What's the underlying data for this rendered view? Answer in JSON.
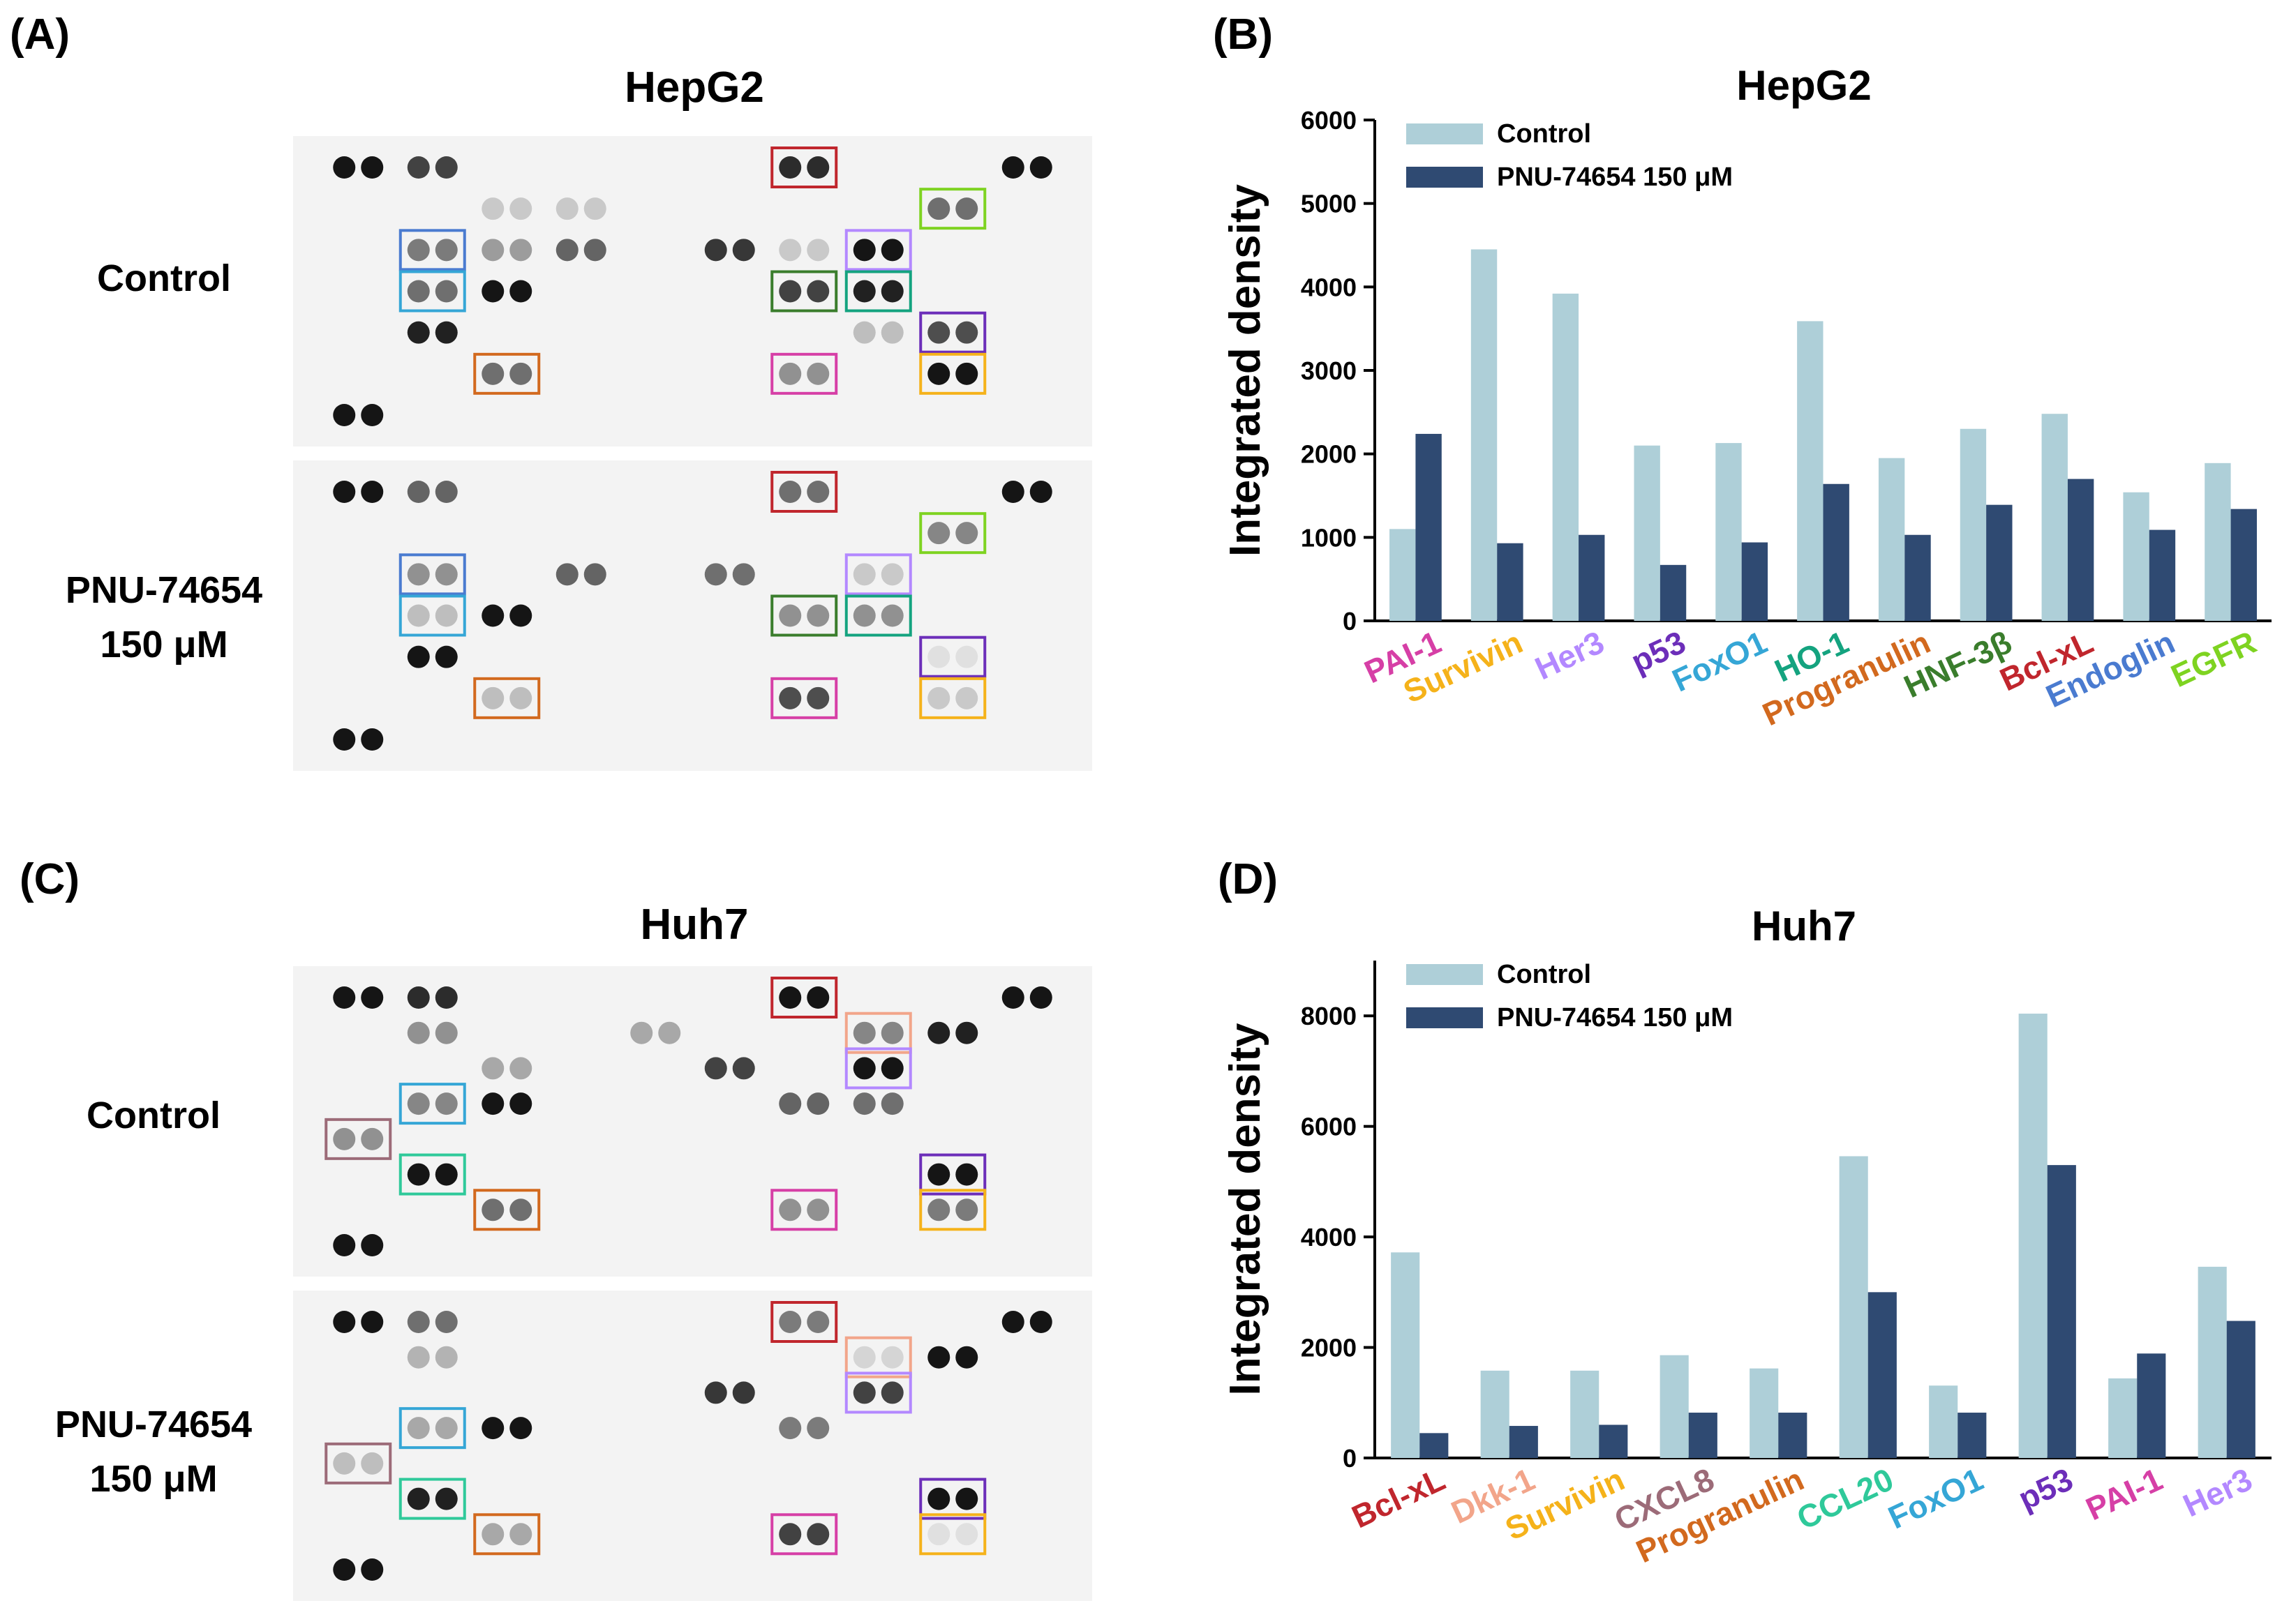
{
  "panels": {
    "a": {
      "letter": "(A)",
      "title": "HepG2",
      "row_labels": [
        "Control",
        "PNU-74654",
        "150 μM"
      ],
      "control_spots": [
        {
          "pair": [
            0,
            0
          ],
          "level": 0.95,
          "frame": null
        },
        {
          "pair": [
            0,
            1
          ],
          "level": 0.75,
          "frame": null
        },
        {
          "pair": [
            0,
            6
          ],
          "level": 0.85,
          "frame": "#c0262d"
        },
        {
          "pair": [
            0,
            9
          ],
          "level": 0.95,
          "frame": null
        },
        {
          "pair": [
            1,
            2
          ],
          "level": 0.15,
          "frame": null
        },
        {
          "pair": [
            1,
            3
          ],
          "level": 0.15,
          "frame": null
        },
        {
          "pair": [
            1,
            8
          ],
          "level": 0.55,
          "frame": "#7ed321"
        },
        {
          "pair": [
            2,
            1
          ],
          "level": 0.5,
          "frame": "#4a7bd0"
        },
        {
          "pair": [
            2,
            2
          ],
          "level": 0.35,
          "frame": null
        },
        {
          "pair": [
            2,
            3
          ],
          "level": 0.6,
          "frame": null
        },
        {
          "pair": [
            2,
            5
          ],
          "level": 0.8,
          "frame": null
        },
        {
          "pair": [
            2,
            6
          ],
          "level": 0.15,
          "frame": null
        },
        {
          "pair": [
            2,
            7
          ],
          "level": 0.95,
          "frame": "#b388ff"
        },
        {
          "pair": [
            3,
            1
          ],
          "level": 0.55,
          "frame": "#35a6d6"
        },
        {
          "pair": [
            3,
            2
          ],
          "level": 0.95,
          "frame": null
        },
        {
          "pair": [
            3,
            6
          ],
          "level": 0.75,
          "frame": "#3a7d2c"
        },
        {
          "pair": [
            3,
            7
          ],
          "level": 0.9,
          "frame": "#14a37f"
        },
        {
          "pair": [
            4,
            1
          ],
          "level": 0.9,
          "frame": null
        },
        {
          "pair": [
            4,
            7
          ],
          "level": 0.2,
          "frame": null
        },
        {
          "pair": [
            4,
            8
          ],
          "level": 0.7,
          "frame": "#6c2eb9"
        },
        {
          "pair": [
            5,
            2
          ],
          "level": 0.55,
          "frame": "#d2691e"
        },
        {
          "pair": [
            5,
            6
          ],
          "level": 0.4,
          "frame": "#d63fa6"
        },
        {
          "pair": [
            5,
            8
          ],
          "level": 0.95,
          "frame": "#f5b21a"
        },
        {
          "pair": [
            6,
            0
          ],
          "level": 0.95,
          "frame": null
        }
      ],
      "treated_spots": [
        {
          "pair": [
            0,
            0
          ],
          "level": 0.95,
          "frame": null
        },
        {
          "pair": [
            0,
            1
          ],
          "level": 0.6,
          "frame": null
        },
        {
          "pair": [
            0,
            6
          ],
          "level": 0.55,
          "frame": "#c0262d"
        },
        {
          "pair": [
            0,
            9
          ],
          "level": 0.95,
          "frame": null
        },
        {
          "pair": [
            1,
            8
          ],
          "level": 0.45,
          "frame": "#7ed321"
        },
        {
          "pair": [
            2,
            1
          ],
          "level": 0.4,
          "frame": "#4a7bd0"
        },
        {
          "pair": [
            2,
            3
          ],
          "level": 0.6,
          "frame": null
        },
        {
          "pair": [
            2,
            5
          ],
          "level": 0.55,
          "frame": null
        },
        {
          "pair": [
            2,
            7
          ],
          "level": 0.15,
          "frame": "#b388ff"
        },
        {
          "pair": [
            3,
            1
          ],
          "level": 0.2,
          "frame": "#35a6d6"
        },
        {
          "pair": [
            3,
            2
          ],
          "level": 0.95,
          "frame": null
        },
        {
          "pair": [
            3,
            6
          ],
          "level": 0.4,
          "frame": "#3a7d2c"
        },
        {
          "pair": [
            3,
            7
          ],
          "level": 0.4,
          "frame": "#14a37f"
        },
        {
          "pair": [
            4,
            1
          ],
          "level": 0.95,
          "frame": null
        },
        {
          "pair": [
            4,
            8
          ],
          "level": 0.05,
          "frame": "#6c2eb9"
        },
        {
          "pair": [
            5,
            2
          ],
          "level": 0.2,
          "frame": "#d2691e"
        },
        {
          "pair": [
            5,
            6
          ],
          "level": 0.7,
          "frame": "#d63fa6"
        },
        {
          "pair": [
            5,
            8
          ],
          "level": 0.15,
          "frame": "#f5b21a"
        },
        {
          "pair": [
            6,
            0
          ],
          "level": 0.95,
          "frame": null
        }
      ]
    },
    "b": {
      "letter": "(B)"
    },
    "c": {
      "letter": "(C)",
      "title": "Huh7",
      "row_labels": [
        "Control",
        "PNU-74654",
        "150 μM"
      ],
      "control_spots": [
        {
          "pair": [
            0,
            0
          ],
          "level": 0.95,
          "frame": null
        },
        {
          "pair": [
            0,
            1
          ],
          "level": 0.85,
          "frame": null
        },
        {
          "pair": [
            0,
            6
          ],
          "level": 0.95,
          "frame": "#c0262d"
        },
        {
          "pair": [
            0,
            9
          ],
          "level": 0.95,
          "frame": null
        },
        {
          "pair": [
            1,
            1
          ],
          "level": 0.4,
          "frame": null
        },
        {
          "pair": [
            1,
            4
          ],
          "level": 0.3,
          "frame": null
        },
        {
          "pair": [
            1,
            7
          ],
          "level": 0.45,
          "frame": "#f2a58a"
        },
        {
          "pair": [
            1,
            8
          ],
          "level": 0.9,
          "frame": null
        },
        {
          "pair": [
            2,
            2
          ],
          "level": 0.3,
          "frame": null
        },
        {
          "pair": [
            2,
            5
          ],
          "level": 0.75,
          "frame": null
        },
        {
          "pair": [
            2,
            7
          ],
          "level": 0.95,
          "frame": "#b388ff"
        },
        {
          "pair": [
            3,
            1
          ],
          "level": 0.45,
          "frame": "#35a6d6"
        },
        {
          "pair": [
            3,
            2
          ],
          "level": 0.95,
          "frame": null
        },
        {
          "pair": [
            3,
            6
          ],
          "level": 0.6,
          "frame": null
        },
        {
          "pair": [
            3,
            7
          ],
          "level": 0.55,
          "frame": null
        },
        {
          "pair": [
            4,
            0
          ],
          "level": 0.4,
          "frame": "#9c6b78"
        },
        {
          "pair": [
            5,
            1
          ],
          "level": 0.95,
          "frame": "#2fc99a"
        },
        {
          "pair": [
            5,
            8
          ],
          "level": 0.95,
          "frame": "#6c2eb9"
        },
        {
          "pair": [
            6,
            2
          ],
          "level": 0.55,
          "frame": "#d2691e"
        },
        {
          "pair": [
            6,
            6
          ],
          "level": 0.4,
          "frame": "#d63fa6"
        },
        {
          "pair": [
            6,
            8
          ],
          "level": 0.5,
          "frame": "#f5b21a"
        },
        {
          "pair": [
            7,
            0
          ],
          "level": 0.95,
          "frame": null
        }
      ],
      "treated_spots": [
        {
          "pair": [
            0,
            0
          ],
          "level": 0.95,
          "frame": null
        },
        {
          "pair": [
            0,
            1
          ],
          "level": 0.55,
          "frame": null
        },
        {
          "pair": [
            0,
            6
          ],
          "level": 0.5,
          "frame": "#c0262d"
        },
        {
          "pair": [
            0,
            9
          ],
          "level": 0.95,
          "frame": null
        },
        {
          "pair": [
            1,
            1
          ],
          "level": 0.25,
          "frame": null
        },
        {
          "pair": [
            1,
            7
          ],
          "level": 0.1,
          "frame": "#f2a58a"
        },
        {
          "pair": [
            1,
            8
          ],
          "level": 0.95,
          "frame": null
        },
        {
          "pair": [
            2,
            5
          ],
          "level": 0.8,
          "frame": null
        },
        {
          "pair": [
            2,
            7
          ],
          "level": 0.75,
          "frame": "#b388ff"
        },
        {
          "pair": [
            3,
            1
          ],
          "level": 0.3,
          "frame": "#35a6d6"
        },
        {
          "pair": [
            3,
            2
          ],
          "level": 0.95,
          "frame": null
        },
        {
          "pair": [
            3,
            6
          ],
          "level": 0.5,
          "frame": null
        },
        {
          "pair": [
            4,
            0
          ],
          "level": 0.2,
          "frame": "#9c6b78"
        },
        {
          "pair": [
            5,
            1
          ],
          "level": 0.9,
          "frame": "#2fc99a"
        },
        {
          "pair": [
            5,
            8
          ],
          "level": 0.95,
          "frame": "#6c2eb9"
        },
        {
          "pair": [
            6,
            2
          ],
          "level": 0.3,
          "frame": "#d2691e"
        },
        {
          "pair": [
            6,
            6
          ],
          "level": 0.75,
          "frame": "#d63fa6"
        },
        {
          "pair": [
            6,
            8
          ],
          "level": 0.05,
          "frame": "#f5b21a"
        },
        {
          "pair": [
            7,
            0
          ],
          "level": 0.95,
          "frame": null
        }
      ]
    },
    "d": {
      "letter": "(D)"
    }
  },
  "chart_data": [
    {
      "type": "bar",
      "title": "HepG2",
      "xlabel": "",
      "ylabel": "Integrated density",
      "ylim": [
        0,
        6000
      ],
      "yticks": [
        "0",
        "1000",
        "2000",
        "3000",
        "4000",
        "5000",
        "6000"
      ],
      "legend_position": "top-left",
      "categories": [
        "PAI-1",
        "Survivin",
        "Her3",
        "p53",
        "FoxO1",
        "HO-1",
        "Progranulin",
        "HNF-3β",
        "Bcl-xL",
        "Endoglin",
        "EGFR"
      ],
      "category_colors": [
        "#d63fa6",
        "#f5b21a",
        "#b388ff",
        "#6c2eb9",
        "#35a6d6",
        "#14a37f",
        "#d2691e",
        "#3a7d2c",
        "#c0262d",
        "#4a7bd0",
        "#7ed321"
      ],
      "series": [
        {
          "name": "Control",
          "color": "#aecfd8",
          "values": [
            1100,
            4450,
            3920,
            2100,
            2130,
            3590,
            1950,
            2300,
            2480,
            1540,
            1890
          ]
        },
        {
          "name": "PNU-74654 150 μM",
          "color": "#2f4a72",
          "values": [
            2240,
            930,
            1030,
            670,
            940,
            1640,
            1030,
            1390,
            1700,
            1090,
            1340
          ]
        }
      ]
    },
    {
      "type": "bar",
      "title": "Huh7",
      "xlabel": "",
      "ylabel": "Integrated density",
      "ylim": [
        0,
        9000
      ],
      "yticks": [
        "0",
        "2000",
        "4000",
        "6000",
        "8000"
      ],
      "legend_position": "top-left",
      "categories": [
        "Bcl-xL",
        "Dkk-1",
        "Survivin",
        "CXCL8",
        "Progranulin",
        "CCL20",
        "FoxO1",
        "p53",
        "PAI-1",
        "Her3"
      ],
      "category_colors": [
        "#c0262d",
        "#f2a58a",
        "#f5b21a",
        "#9c6b78",
        "#d2691e",
        "#2fc99a",
        "#35a6d6",
        "#6c2eb9",
        "#d63fa6",
        "#b388ff"
      ],
      "series": [
        {
          "name": "Control",
          "color": "#aecfd8",
          "values": [
            3720,
            1580,
            1580,
            1860,
            1620,
            5460,
            1310,
            8040,
            1440,
            3460
          ]
        },
        {
          "name": "PNU-74654 150 μM",
          "color": "#2f4a72",
          "values": [
            450,
            580,
            600,
            820,
            820,
            3000,
            820,
            5300,
            1890,
            2480
          ]
        }
      ]
    }
  ]
}
